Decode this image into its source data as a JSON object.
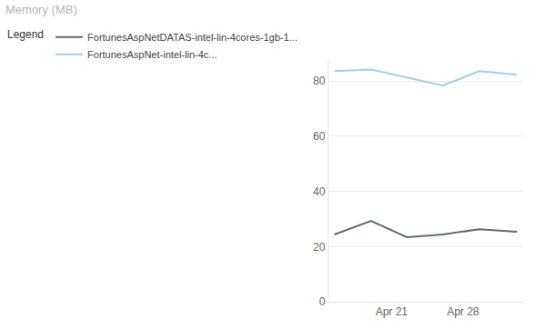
{
  "chart_data": {
    "type": "line",
    "title": "Memory (MB)",
    "legend_title": "Legend",
    "legend": "top left",
    "grid": true,
    "x": [
      15.4,
      19.0,
      22.5,
      26.0,
      29.6,
      33.3
    ],
    "xlim": [
      14.8,
      33.9
    ],
    "xticks": [
      {
        "value": 21,
        "label": "Apr 21"
      },
      {
        "value": 28,
        "label": "Apr 28"
      }
    ],
    "ylim": [
      0,
      88
    ],
    "yticks": [
      0,
      20,
      40,
      60,
      80
    ],
    "series": [
      {
        "name": "FortunesAspNetDATAS-intel-lin-4cores-1gb-1...",
        "color": "#5f6b6d",
        "values": [
          24.4,
          29.3,
          23.4,
          24.4,
          26.3,
          25.4
        ]
      },
      {
        "name": "FortunesAspNet-intel-lin-4c...",
        "color": "#9ed0e6",
        "values": [
          83.6,
          84.2,
          81.3,
          78.4,
          83.6,
          82.3
        ]
      }
    ]
  }
}
